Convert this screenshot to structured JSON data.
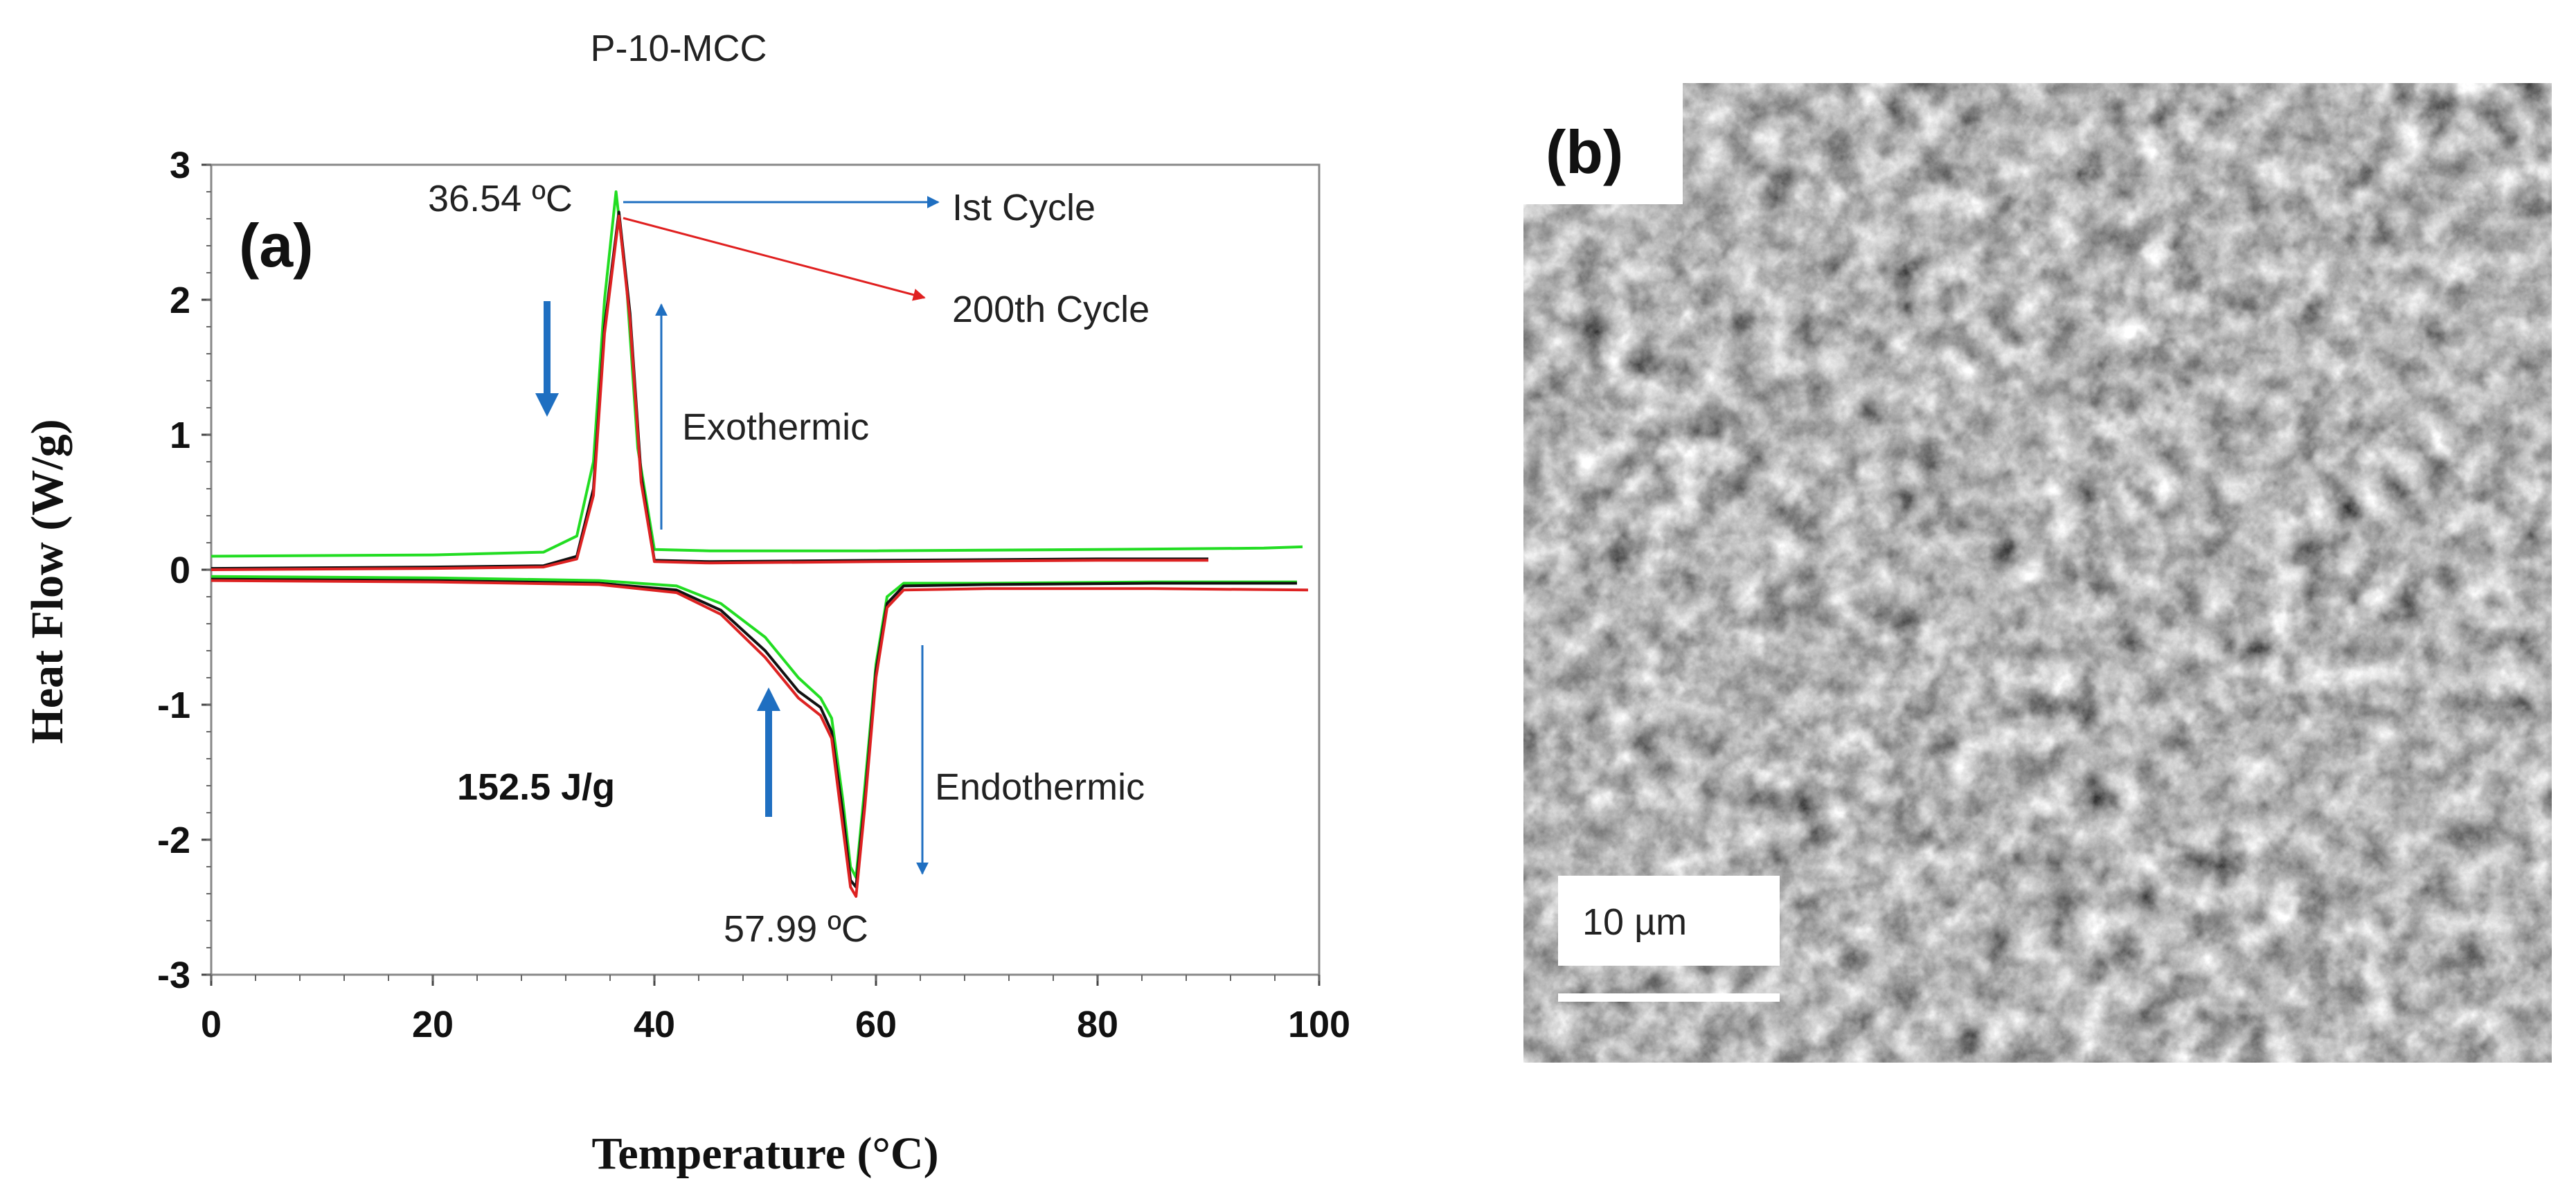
{
  "chart_data": {
    "type": "line",
    "title": "P-10-MCC",
    "xlabel": "Temperature (°C)",
    "ylabel": "Heat Flow (W/g)",
    "xlim": [
      0,
      100
    ],
    "ylim": [
      -3,
      3
    ],
    "xticks": [
      "0",
      "20",
      "40",
      "60",
      "80",
      "100"
    ],
    "yticks": [
      "3",
      "2",
      "1",
      "0",
      "-1",
      "-2",
      "-3"
    ],
    "grid": false,
    "panel_a_label": "(a)",
    "panel_b_label": "(b)",
    "annotations": {
      "exo_peak": "36.54 ºC",
      "endo_peak": "57.99 ºC",
      "first_cycle": "Ist Cycle",
      "cycle_200": "200th Cycle",
      "exothermic": "Exothermic",
      "endothermic": "Endothermic",
      "enthalpy": "152.5 J/g"
    },
    "series": [
      {
        "color": "#22dd22",
        "x": [
          0,
          20,
          30,
          33,
          34.5,
          35.5,
          36.54,
          37.5,
          38.5,
          40,
          45,
          60,
          80,
          95,
          98.5
        ],
        "y": [
          0.1,
          0.11,
          0.13,
          0.25,
          0.8,
          2.0,
          2.8,
          2.1,
          0.9,
          0.15,
          0.14,
          0.14,
          0.15,
          0.16,
          0.17
        ]
      },
      {
        "color": "#111111",
        "x": [
          0,
          20,
          30,
          33,
          34.5,
          35.5,
          36.8,
          37.8,
          38.8,
          40,
          45,
          60,
          80,
          90
        ],
        "y": [
          0.01,
          0.02,
          0.03,
          0.1,
          0.6,
          1.8,
          2.65,
          1.9,
          0.7,
          0.07,
          0.06,
          0.07,
          0.08,
          0.08
        ]
      },
      {
        "color": "#dd2222",
        "x": [
          0,
          20,
          30,
          33,
          34.5,
          35.5,
          36.8,
          37.8,
          38.8,
          40,
          45,
          60,
          80,
          90
        ],
        "y": [
          0.0,
          0.01,
          0.02,
          0.08,
          0.55,
          1.75,
          2.62,
          1.85,
          0.65,
          0.06,
          0.05,
          0.06,
          0.07,
          0.07
        ]
      },
      {
        "color": "#22dd22",
        "x": [
          0,
          20,
          35,
          42,
          46,
          50,
          53,
          55,
          56,
          57,
          57.7,
          58.2,
          59,
          60,
          61,
          62.5,
          70,
          85,
          98
        ],
        "y": [
          -0.05,
          -0.06,
          -0.08,
          -0.12,
          -0.25,
          -0.5,
          -0.8,
          -0.95,
          -1.1,
          -1.7,
          -2.2,
          -2.28,
          -1.6,
          -0.7,
          -0.2,
          -0.1,
          -0.1,
          -0.09,
          -0.09
        ]
      },
      {
        "color": "#111111",
        "x": [
          0,
          20,
          35,
          42,
          46,
          50,
          53,
          55,
          56,
          57,
          57.7,
          58.2,
          59,
          60,
          61,
          62.5,
          70,
          85,
          98
        ],
        "y": [
          -0.07,
          -0.08,
          -0.1,
          -0.15,
          -0.3,
          -0.6,
          -0.9,
          -1.02,
          -1.2,
          -1.8,
          -2.3,
          -2.35,
          -1.7,
          -0.75,
          -0.25,
          -0.12,
          -0.11,
          -0.1,
          -0.1
        ]
      },
      {
        "color": "#dd2222",
        "x": [
          0,
          20,
          35,
          42,
          46,
          50,
          53,
          55,
          56,
          57,
          57.7,
          58.2,
          59,
          60,
          61,
          62.5,
          70,
          85,
          99
        ],
        "y": [
          -0.08,
          -0.09,
          -0.11,
          -0.17,
          -0.33,
          -0.65,
          -0.95,
          -1.08,
          -1.25,
          -1.9,
          -2.35,
          -2.42,
          -1.75,
          -0.8,
          -0.28,
          -0.15,
          -0.14,
          -0.14,
          -0.15
        ]
      }
    ],
    "sem_scale_label": "10 µm"
  }
}
